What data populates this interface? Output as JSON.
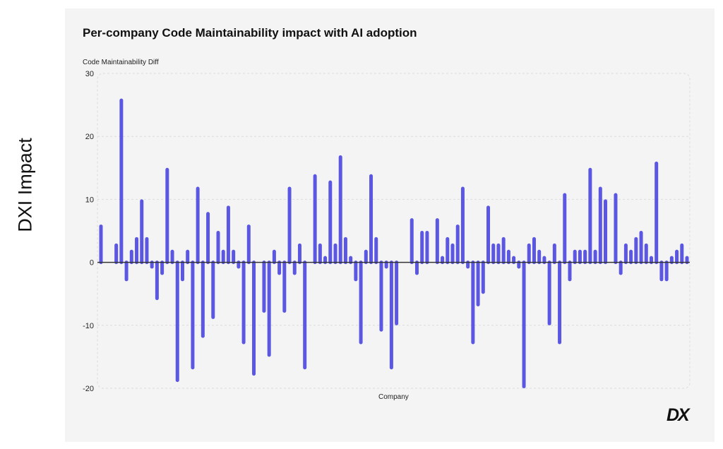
{
  "side_label": "DXI Impact",
  "logo_text": "DX",
  "chart_data": {
    "type": "bar",
    "title": "Per-company Code Maintainability impact with AI adoption",
    "xlabel": "Company",
    "ylabel": "Code Maintainability Diff",
    "ylim": [
      -20,
      30
    ],
    "yticks": [
      30,
      20,
      10,
      0,
      -10,
      -20
    ],
    "grid": true,
    "bar_color": "#5b57e3",
    "values": [
      6,
      null,
      null,
      3,
      26,
      -3,
      2,
      4,
      10,
      4,
      -1,
      -6,
      -2,
      15,
      2,
      -19,
      -3,
      2,
      -17,
      12,
      -12,
      8,
      -9,
      5,
      2,
      9,
      2,
      -1,
      -13,
      6,
      -18,
      null,
      -8,
      -15,
      2,
      -2,
      -8,
      12,
      -2,
      3,
      -17,
      null,
      14,
      3,
      1,
      13,
      3,
      17,
      4,
      1,
      -3,
      -13,
      2,
      14,
      4,
      -11,
      -1,
      -17,
      -10,
      null,
      null,
      7,
      -2,
      5,
      5,
      null,
      7,
      1,
      4,
      3,
      6,
      12,
      -1,
      -13,
      -7,
      -5,
      9,
      3,
      3,
      4,
      2,
      1,
      -1,
      -20,
      3,
      4,
      2,
      1,
      -10,
      3,
      -13,
      11,
      -3,
      2,
      2,
      2,
      15,
      2,
      12,
      10,
      null,
      11,
      -2,
      3,
      2,
      4,
      5,
      3,
      1,
      16,
      -3,
      -3,
      1,
      2,
      3,
      1
    ]
  }
}
